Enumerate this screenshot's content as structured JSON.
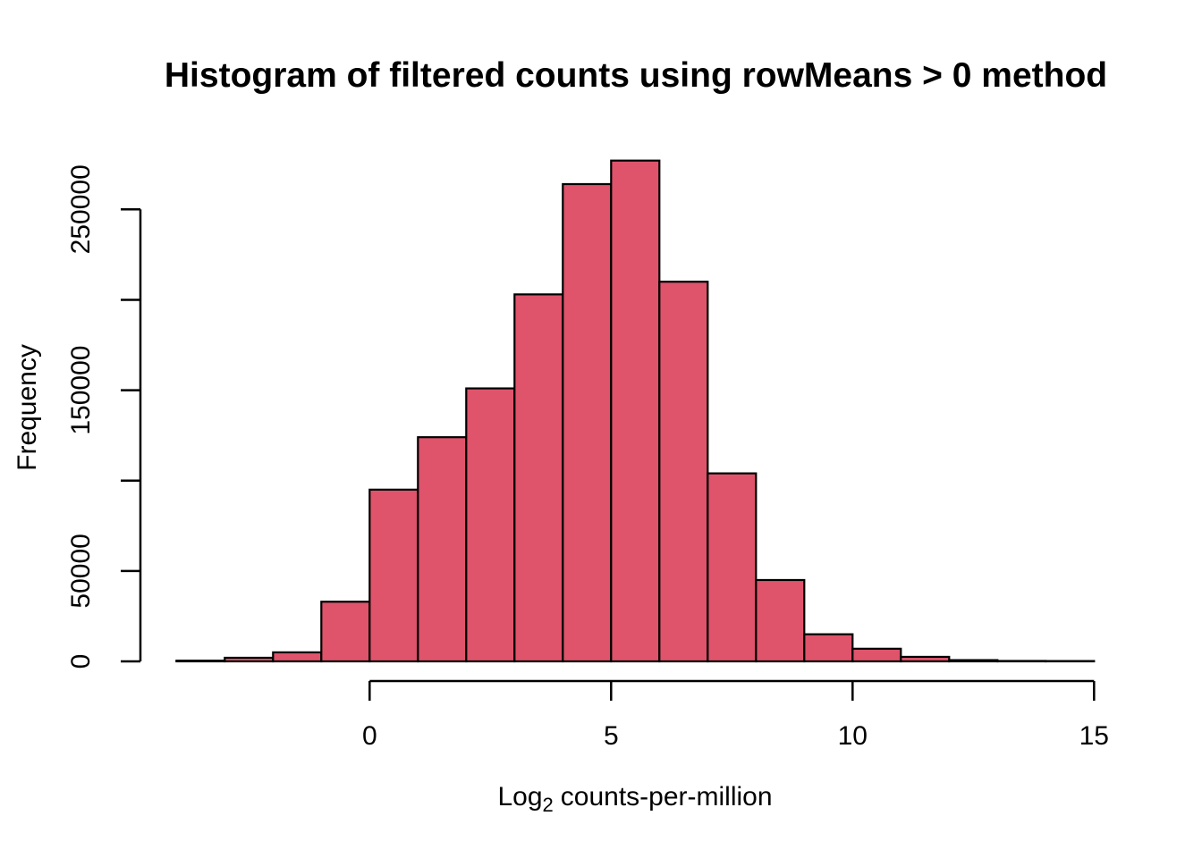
{
  "chart_data": {
    "type": "bar",
    "subtype": "histogram",
    "title": "Histogram of filtered counts using rowMeans > 0 method",
    "xlabel_parts": {
      "text": "Log",
      "sub": "2",
      "rest": "counts-per-million"
    },
    "ylabel": "Frequency",
    "bar_fill_color": "#DF536B",
    "bar_edge_color": "#000000",
    "axis_color": "#000000",
    "breaks": [
      -4,
      -3,
      -2,
      -1,
      0,
      1,
      2,
      3,
      4,
      5,
      6,
      7,
      8,
      9,
      10,
      11,
      12,
      13,
      14,
      15
    ],
    "counts": [
      400,
      2000,
      5000,
      33000,
      95000,
      124000,
      151000,
      203000,
      264000,
      277000,
      210000,
      104000,
      45000,
      15000,
      7000,
      2500,
      700,
      250,
      100
    ],
    "x_ticks": [
      0,
      5,
      10,
      15
    ],
    "x_tick_labels": [
      "0",
      "5",
      "10",
      "15"
    ],
    "y_ticks": [
      0,
      50000,
      100000,
      150000,
      200000,
      250000
    ],
    "y_tick_labels": [
      "0",
      "50000",
      "",
      "150000",
      "",
      "250000"
    ],
    "xlim": [
      -4,
      15
    ],
    "ylim": [
      0,
      250000
    ],
    "grid": "off",
    "legend": "none"
  }
}
